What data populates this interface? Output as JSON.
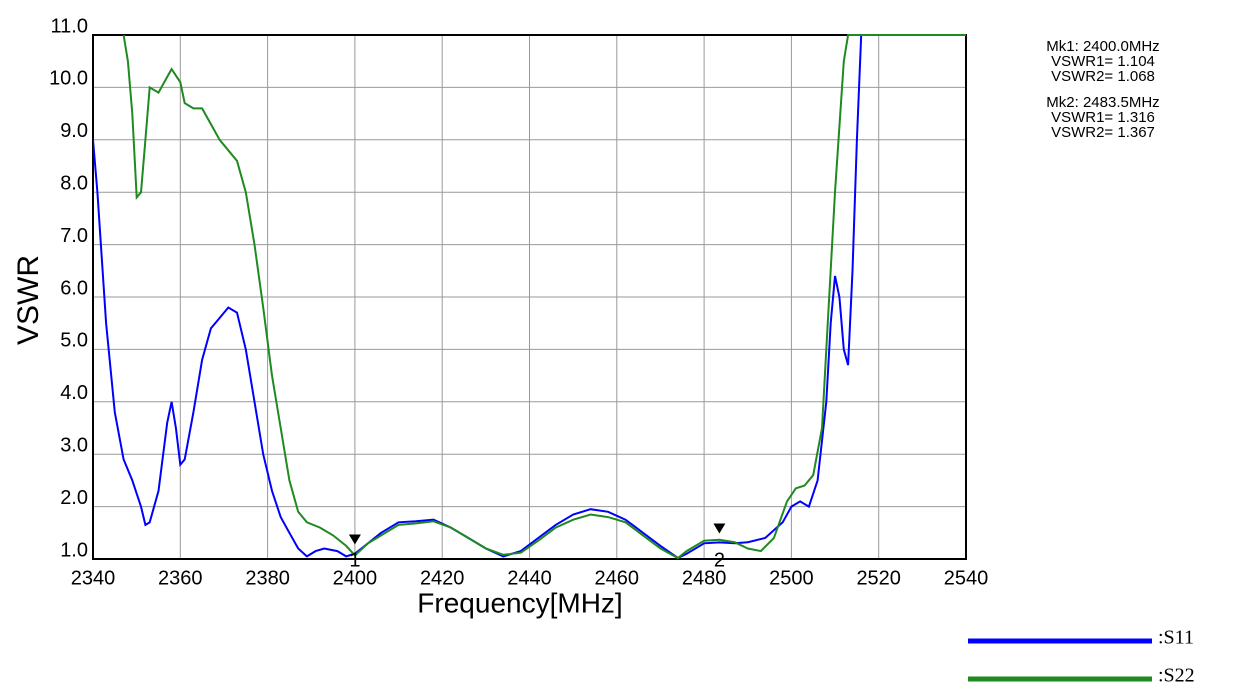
{
  "chart_data": {
    "type": "line",
    "xlabel": "Frequency[MHz]",
    "ylabel": "VSWR",
    "xlim": [
      2340,
      2540
    ],
    "xticks": [
      2340,
      2360,
      2380,
      2400,
      2420,
      2440,
      2460,
      2480,
      2500,
      2520,
      2540
    ],
    "ylim": [
      1,
      11
    ],
    "yticks": [
      {
        "value": 1,
        "label": "1.0"
      },
      {
        "value": 2,
        "label": "2.0"
      },
      {
        "value": 3,
        "label": "3.0"
      },
      {
        "value": 4,
        "label": "4.0"
      },
      {
        "value": 5,
        "label": "5.0"
      },
      {
        "value": 6,
        "label": "6.0"
      },
      {
        "value": 7,
        "label": "7.0"
      },
      {
        "value": 8,
        "label": "8.0"
      },
      {
        "value": 9,
        "label": "9.0"
      },
      {
        "value": 10,
        "label": "10.0"
      },
      {
        "value": 11,
        "label": "11.0"
      }
    ],
    "grid": true,
    "series": [
      {
        "name": ":S11",
        "color": "#0000ff",
        "x": [
          2340,
          2341,
          2343,
          2345,
          2347,
          2349,
          2351,
          2352,
          2353,
          2355,
          2357,
          2358,
          2359,
          2360,
          2361,
          2363,
          2365,
          2367,
          2369,
          2371,
          2373,
          2375,
          2377,
          2379,
          2381,
          2383,
          2385,
          2387,
          2389,
          2391,
          2393,
          2396,
          2398,
          2400,
          2403,
          2406,
          2410,
          2414,
          2418,
          2422,
          2426,
          2430,
          2434,
          2438,
          2442,
          2446,
          2450,
          2454,
          2458,
          2462,
          2466,
          2470,
          2474,
          2476,
          2480,
          2483.5,
          2487,
          2490,
          2494,
          2498,
          2500,
          2502,
          2504,
          2506,
          2508,
          2509,
          2510,
          2511,
          2512,
          2513,
          2514,
          2515,
          2516
        ],
        "values": [
          9.0,
          8.0,
          5.5,
          3.8,
          2.9,
          2.5,
          2.0,
          1.65,
          1.7,
          2.3,
          3.6,
          4.0,
          3.5,
          2.8,
          2.9,
          3.8,
          4.8,
          5.4,
          5.6,
          5.8,
          5.7,
          5.0,
          4.0,
          3.0,
          2.3,
          1.8,
          1.5,
          1.2,
          1.05,
          1.15,
          1.2,
          1.15,
          1.05,
          1.104,
          1.3,
          1.5,
          1.7,
          1.72,
          1.75,
          1.6,
          1.4,
          1.2,
          1.05,
          1.15,
          1.4,
          1.65,
          1.85,
          1.95,
          1.9,
          1.75,
          1.5,
          1.25,
          1.02,
          1.1,
          1.3,
          1.316,
          1.3,
          1.32,
          1.4,
          1.7,
          2.0,
          2.1,
          2.0,
          2.5,
          4.0,
          5.5,
          6.4,
          6.0,
          5.0,
          4.7,
          6.5,
          9.0,
          11.0
        ]
      },
      {
        "name": ":S22",
        "color": "#1f8a1f",
        "x": [
          2347,
          2348,
          2349,
          2350,
          2351,
          2352,
          2353,
          2355,
          2357,
          2358,
          2360,
          2361,
          2363,
          2365,
          2367,
          2369,
          2371,
          2373,
          2375,
          2377,
          2379,
          2381,
          2383,
          2385,
          2387,
          2389,
          2392,
          2395,
          2398,
          2400,
          2403,
          2406,
          2410,
          2414,
          2418,
          2422,
          2426,
          2430,
          2434,
          2438,
          2442,
          2446,
          2450,
          2454,
          2458,
          2462,
          2466,
          2470,
          2474,
          2476,
          2480,
          2483.5,
          2487,
          2490,
          2493,
          2496,
          2499,
          2501,
          2503,
          2505,
          2507,
          2508,
          2510,
          2512,
          2513,
          2540
        ],
        "values": [
          11.0,
          10.5,
          9.5,
          7.9,
          8.0,
          9.0,
          10.0,
          9.9,
          10.2,
          10.35,
          10.1,
          9.7,
          9.6,
          9.6,
          9.3,
          9.0,
          8.8,
          8.6,
          8.0,
          7.0,
          5.8,
          4.5,
          3.5,
          2.5,
          1.9,
          1.7,
          1.6,
          1.45,
          1.25,
          1.068,
          1.3,
          1.45,
          1.65,
          1.68,
          1.72,
          1.6,
          1.4,
          1.2,
          1.08,
          1.12,
          1.35,
          1.6,
          1.75,
          1.85,
          1.8,
          1.7,
          1.45,
          1.2,
          1.02,
          1.15,
          1.35,
          1.367,
          1.32,
          1.2,
          1.15,
          1.4,
          2.1,
          2.35,
          2.4,
          2.6,
          3.5,
          5.0,
          8.0,
          10.5,
          11.0,
          11.0
        ]
      }
    ],
    "markers": [
      {
        "x": 2400,
        "label": "1"
      },
      {
        "x": 2483.5,
        "label": "2"
      }
    ],
    "annotations": [
      [
        "Mk1: 2400.0MHz",
        "VSWR1= 1.104",
        "VSWR2= 1.068"
      ],
      [
        "Mk2: 2483.5MHz",
        "VSWR1= 1.316",
        "VSWR2= 1.367"
      ]
    ]
  }
}
